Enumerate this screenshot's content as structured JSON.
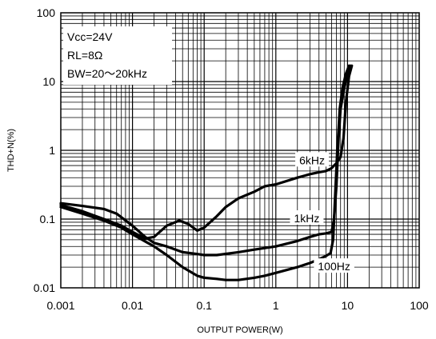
{
  "chart_data": {
    "type": "line",
    "title": "",
    "xlabel": "OUTPUT POWER(W)",
    "ylabel": "THD+N(%)",
    "x_scale": "log",
    "y_scale": "log",
    "xlim": [
      0.001,
      100
    ],
    "ylim": [
      0.01,
      100
    ],
    "grid": true,
    "x_ticks": [
      {
        "value": 0.001,
        "label": "0.001"
      },
      {
        "value": 0.01,
        "label": "0.01"
      },
      {
        "value": 0.1,
        "label": "0.1"
      },
      {
        "value": 1,
        "label": "1"
      },
      {
        "value": 10,
        "label": "10"
      },
      {
        "value": 100,
        "label": "100"
      }
    ],
    "y_ticks": [
      {
        "value": 0.01,
        "label": "0.01"
      },
      {
        "value": 0.1,
        "label": "0.1"
      },
      {
        "value": 1,
        "label": "1"
      },
      {
        "value": 10,
        "label": "10"
      },
      {
        "value": 100,
        "label": "100"
      }
    ],
    "annotations": [
      "Vcc=24V",
      "RL=8Ω",
      "BW=20～20kHz"
    ],
    "series": [
      {
        "name": "6kHz",
        "label_at": [
          3.2,
          0.7
        ],
        "points": [
          [
            0.001,
            0.16
          ],
          [
            0.002,
            0.13
          ],
          [
            0.004,
            0.1
          ],
          [
            0.007,
            0.08
          ],
          [
            0.01,
            0.065
          ],
          [
            0.015,
            0.052
          ],
          [
            0.02,
            0.055
          ],
          [
            0.03,
            0.08
          ],
          [
            0.045,
            0.095
          ],
          [
            0.06,
            0.085
          ],
          [
            0.08,
            0.068
          ],
          [
            0.1,
            0.075
          ],
          [
            0.15,
            0.11
          ],
          [
            0.2,
            0.15
          ],
          [
            0.3,
            0.2
          ],
          [
            0.5,
            0.25
          ],
          [
            0.7,
            0.3
          ],
          [
            1,
            0.32
          ],
          [
            2,
            0.4
          ],
          [
            3,
            0.45
          ],
          [
            4,
            0.48
          ],
          [
            5,
            0.5
          ],
          [
            6,
            0.55
          ],
          [
            7,
            0.65
          ],
          [
            8,
            0.8
          ],
          [
            8.8,
            1.5
          ],
          [
            9.5,
            5
          ],
          [
            10.5,
            12
          ],
          [
            11.5,
            17
          ]
        ]
      },
      {
        "name": "1kHz",
        "label_at": [
          2.7,
          0.1
        ],
        "points": [
          [
            0.001,
            0.17
          ],
          [
            0.002,
            0.155
          ],
          [
            0.004,
            0.14
          ],
          [
            0.006,
            0.12
          ],
          [
            0.01,
            0.08
          ],
          [
            0.015,
            0.055
          ],
          [
            0.02,
            0.045
          ],
          [
            0.03,
            0.04
          ],
          [
            0.05,
            0.033
          ],
          [
            0.08,
            0.031
          ],
          [
            0.1,
            0.03
          ],
          [
            0.15,
            0.03
          ],
          [
            0.3,
            0.033
          ],
          [
            0.5,
            0.036
          ],
          [
            1,
            0.04
          ],
          [
            2,
            0.048
          ],
          [
            3,
            0.055
          ],
          [
            4,
            0.06
          ],
          [
            5,
            0.062
          ],
          [
            6,
            0.065
          ],
          [
            6.5,
            0.1
          ],
          [
            7,
            0.3
          ],
          [
            7.5,
            1.5
          ],
          [
            8,
            4
          ],
          [
            9,
            8
          ],
          [
            10,
            13
          ],
          [
            11,
            17
          ]
        ]
      },
      {
        "name": "100Hz",
        "label_at": [
          6.5,
          0.02
        ],
        "points": [
          [
            0.001,
            0.15
          ],
          [
            0.002,
            0.12
          ],
          [
            0.004,
            0.095
          ],
          [
            0.007,
            0.075
          ],
          [
            0.01,
            0.06
          ],
          [
            0.02,
            0.04
          ],
          [
            0.03,
            0.03
          ],
          [
            0.05,
            0.02
          ],
          [
            0.08,
            0.015
          ],
          [
            0.1,
            0.014
          ],
          [
            0.15,
            0.0135
          ],
          [
            0.2,
            0.013
          ],
          [
            0.3,
            0.013
          ],
          [
            0.5,
            0.014
          ],
          [
            0.7,
            0.015
          ],
          [
            1,
            0.0165
          ],
          [
            2,
            0.02
          ],
          [
            3,
            0.023
          ],
          [
            4,
            0.026
          ],
          [
            5,
            0.029
          ],
          [
            5.8,
            0.032
          ],
          [
            6.3,
            0.05
          ],
          [
            6.7,
            0.2
          ],
          [
            7.2,
            1
          ],
          [
            7.8,
            4
          ],
          [
            8.5,
            8
          ],
          [
            9.5,
            13
          ],
          [
            10.5,
            17
          ]
        ]
      }
    ]
  }
}
